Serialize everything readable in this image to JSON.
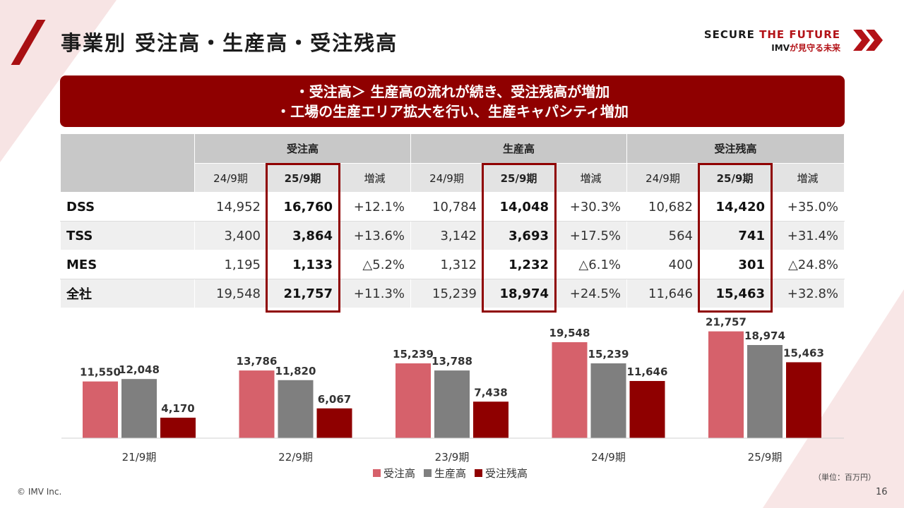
{
  "title": "事業別 受注高・生産高・受注残高",
  "brand": {
    "line1_a": "SECURE ",
    "line1_b": "THE FUTURE",
    "line2_a": "IMV",
    "line2_b": "が見守る未来"
  },
  "banner": {
    "line1": "・受注高＞ 生産高の流れが続き、受注残高が増加",
    "line2": "・工場の生産エリア拡大を行い、生産キャパシティ増加"
  },
  "table": {
    "groups": [
      "受注高",
      "生産高",
      "受注残高"
    ],
    "subheaders": [
      "24/9期",
      "25/9期",
      "増減"
    ],
    "rows": [
      {
        "label": "DSS",
        "cells": [
          "14,952",
          "16,760",
          "+12.1%",
          "10,784",
          "14,048",
          "+30.3%",
          "10,682",
          "14,420",
          "+35.0%"
        ]
      },
      {
        "label": "TSS",
        "cells": [
          "3,400",
          "3,864",
          "+13.6%",
          "3,142",
          "3,693",
          "+17.5%",
          "564",
          "741",
          "+31.4%"
        ]
      },
      {
        "label": "MES",
        "cells": [
          "1,195",
          "1,133",
          "△5.2%",
          "1,312",
          "1,232",
          "△6.1%",
          "400",
          "301",
          "△24.8%"
        ]
      },
      {
        "label": "全社",
        "cells": [
          "19,548",
          "21,757",
          "+11.3%",
          "15,239",
          "18,974",
          "+24.5%",
          "11,646",
          "15,463",
          "+32.8%"
        ]
      }
    ]
  },
  "chart_data": {
    "type": "bar",
    "categories": [
      "21/9期",
      "22/9期",
      "23/9期",
      "24/9期",
      "25/9期"
    ],
    "series": [
      {
        "name": "受注高",
        "color": "#d6616b",
        "values": [
          11550,
          13786,
          15239,
          19548,
          21757
        ]
      },
      {
        "name": "生産高",
        "color": "#7f7f7f",
        "values": [
          12048,
          11820,
          13788,
          15239,
          18974
        ]
      },
      {
        "name": "受注残高",
        "color": "#8f0000",
        "values": [
          4170,
          6067,
          7438,
          11646,
          15463
        ]
      }
    ],
    "value_labels": [
      [
        "11,550",
        "12,048",
        "4,170"
      ],
      [
        "13,786",
        "11,820",
        "6,067"
      ],
      [
        "15,239",
        "13,788",
        "7,438"
      ],
      [
        "19,548",
        "15,239",
        "11,646"
      ],
      [
        "21,757",
        "18,974",
        "15,463"
      ]
    ],
    "unit": "（単位：百万円）",
    "legend_position": "bottom"
  },
  "footer": {
    "copyright": "© IMV Inc.",
    "page": "16"
  }
}
